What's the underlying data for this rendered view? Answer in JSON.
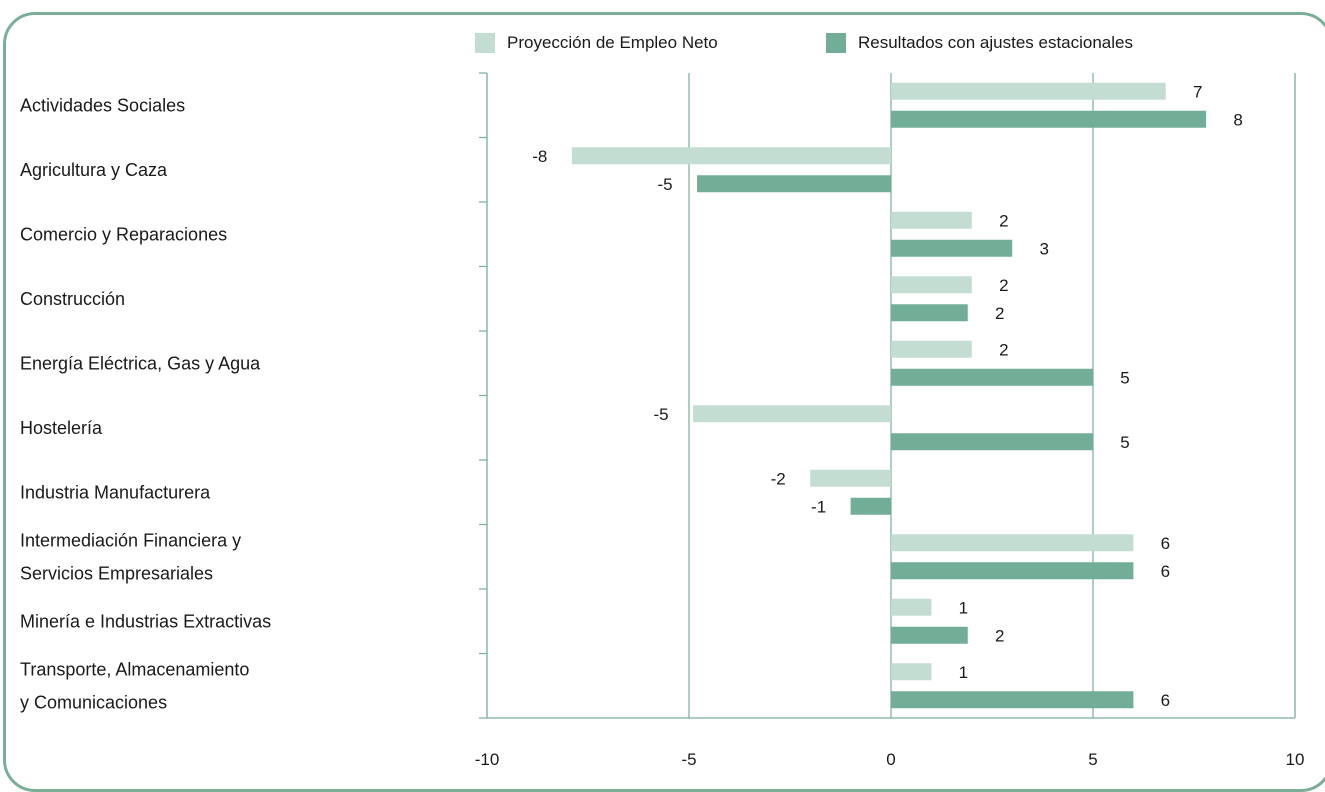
{
  "chart_data": {
    "type": "bar",
    "orientation": "horizontal",
    "categories": [
      [
        "Actividades Sociales"
      ],
      [
        "Agricultura y Caza"
      ],
      [
        "Comercio y Reparaciones"
      ],
      [
        "Construcción"
      ],
      [
        "Energía Eléctrica, Gas y Agua"
      ],
      [
        "Hostelería"
      ],
      [
        "Industria Manufacturera"
      ],
      [
        "Intermediación Financiera y",
        "Servicios Empresariales"
      ],
      [
        "Minería e Industrias Extractivas"
      ],
      [
        "Transporte, Almacenamiento",
        "y Comunicaciones"
      ]
    ],
    "series": [
      {
        "name": "Proyección de Empleo Neto",
        "color": "#c3ddd2",
        "values": [
          6.8,
          -7.9,
          2.0,
          2.0,
          2.0,
          -4.9,
          -2.0,
          6.0,
          1.0,
          1.0
        ],
        "labels": [
          "7",
          "-8",
          "2",
          "2",
          "2",
          "-5",
          "-2",
          "6",
          "1",
          "1"
        ]
      },
      {
        "name": "Resultados con ajustes estacionales",
        "color": "#72ad97",
        "values": [
          7.8,
          -4.8,
          3.0,
          1.9,
          5.0,
          5.0,
          -1.0,
          6.0,
          1.9,
          6.0
        ],
        "labels": [
          "8",
          "-5",
          "3",
          "2",
          "5",
          "5",
          "-1",
          "6",
          "2",
          "6"
        ]
      }
    ],
    "xlim": [
      -10,
      10
    ],
    "xticks": [
      "-10",
      "-5",
      "0",
      "5",
      "10"
    ],
    "grid": true,
    "legend": "top"
  },
  "colors": {
    "frame": "#7aae98",
    "axis": "#7aae98",
    "grid": "#7aae98"
  }
}
